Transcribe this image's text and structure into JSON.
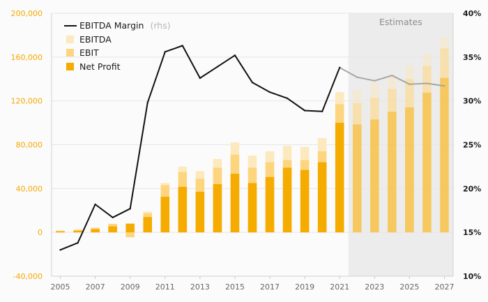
{
  "chart_data": {
    "type": "bar",
    "title": "",
    "xlabel": "",
    "ylabel": "",
    "years": [
      2005,
      2006,
      2007,
      2008,
      2009,
      2010,
      2011,
      2012,
      2013,
      2014,
      2015,
      2016,
      2017,
      2018,
      2019,
      2020,
      2021,
      2022,
      2023,
      2024,
      2025,
      2026,
      2027
    ],
    "x_tick_labels": [
      "2005",
      "2007",
      "2009",
      "2011",
      "2013",
      "2015",
      "2017",
      "2019",
      "2021",
      "2023",
      "2025",
      "2027"
    ],
    "estimates_from": 2022,
    "estimates_label": "Estimates",
    "y_left": {
      "range": [
        -40000,
        200000
      ],
      "ticks": [
        -40000,
        0,
        40000,
        80000,
        120000,
        160000,
        200000
      ],
      "tick_labels": [
        "-40,000",
        "0",
        "40,000",
        "80,000",
        "120,000",
        "160,000",
        "200,000"
      ]
    },
    "y_right": {
      "range": [
        10,
        40
      ],
      "ticks": [
        10,
        15,
        20,
        25,
        30,
        35,
        40
      ],
      "tick_labels": [
        "10%",
        "15%",
        "20%",
        "25%",
        "30%",
        "35%",
        "40%"
      ]
    },
    "series": [
      {
        "name": "EBITDA",
        "kind": "bar",
        "axis": "left",
        "color": "#fce9bd",
        "values": [
          1800,
          2800,
          4500,
          6500,
          -2500,
          19000,
          45000,
          60000,
          56000,
          67000,
          82000,
          70000,
          74000,
          79000,
          78000,
          86000,
          128000,
          130000,
          137000,
          143000,
          152000,
          163000,
          178000
        ]
      },
      {
        "name": "EBIT",
        "kind": "bar",
        "axis": "left",
        "color": "#fdd57e",
        "values": [
          1200,
          2200,
          3800,
          7800,
          -4500,
          17500,
          43000,
          55000,
          49000,
          59000,
          71000,
          59000,
          64000,
          66000,
          66000,
          74000,
          117000,
          118000,
          123000,
          131000,
          140000,
          152000,
          168000
        ]
      },
      {
        "name": "Net Profit",
        "kind": "bar",
        "axis": "left",
        "color": "#f5ab00",
        "values": [
          1000,
          1500,
          3000,
          5500,
          8000,
          14000,
          32500,
          41500,
          37000,
          44000,
          53500,
          45000,
          50500,
          59000,
          57000,
          64000,
          100000,
          98500,
          103000,
          110000,
          114000,
          127500,
          141000
        ]
      },
      {
        "name": "EBITDA Margin",
        "name_suffix": "(rhs)",
        "kind": "line",
        "axis": "right",
        "color": "#111111",
        "estimate_color": "#a6a6a6",
        "values": [
          13.0,
          13.8,
          18.2,
          16.7,
          17.7,
          29.8,
          35.6,
          36.3,
          32.6,
          33.9,
          35.2,
          32.1,
          31.0,
          30.3,
          28.9,
          28.8,
          33.8,
          32.7,
          32.3,
          32.9,
          31.9,
          32.0,
          31.7
        ]
      }
    ],
    "legend": {
      "position": "top-left",
      "items": [
        {
          "label": "EBITDA Margin",
          "suffix": "(rhs)"
        },
        {
          "label": "EBITDA"
        },
        {
          "label": "EBIT"
        },
        {
          "label": "Net Profit"
        }
      ]
    },
    "estimate_overlay": {
      "opacity": 0.45
    },
    "colors": {
      "left_axis_text": "#f5a800",
      "right_axis_text": "#1a1a1a",
      "grid": "#e6e6e6",
      "estimates_band": "#ececec"
    },
    "grid": true
  }
}
